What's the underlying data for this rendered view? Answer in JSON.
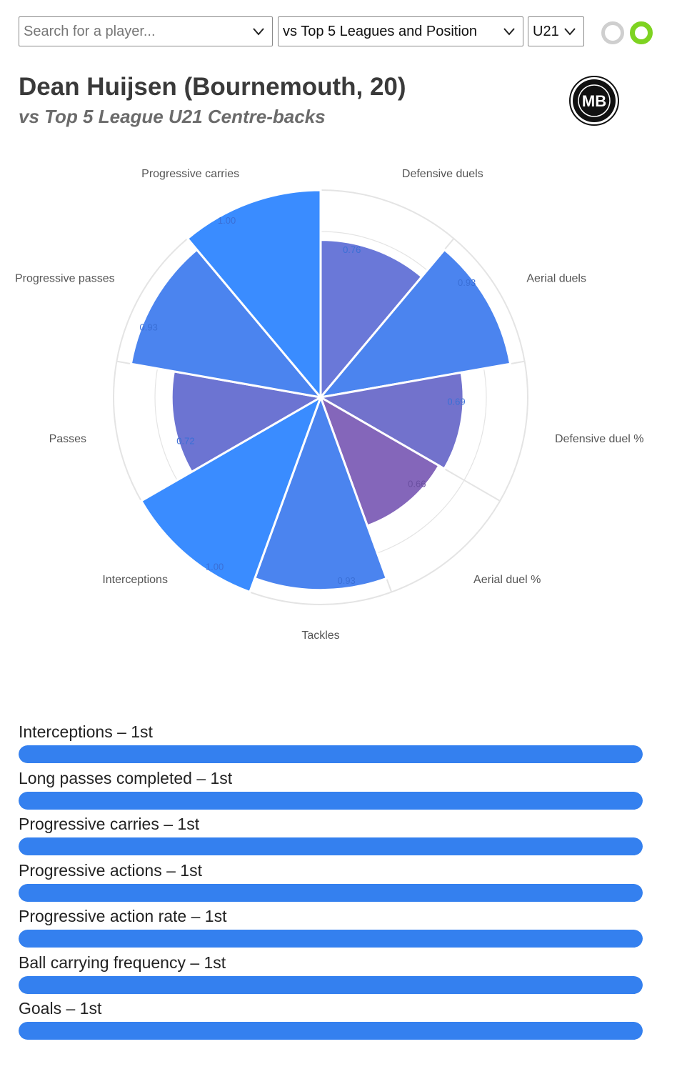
{
  "controls": {
    "search_placeholder": "Search for a player...",
    "comparison_value": "vs Top 5 Leagues and Position",
    "age_value": "U21"
  },
  "header": {
    "title": "Dean Huijsen (Bournemouth, 20)",
    "subtitle": "vs Top 5 League U21 Centre-backs",
    "logo_text": "MB"
  },
  "chart_data": {
    "type": "polar-area",
    "title": "",
    "rlim": [
      0,
      1
    ],
    "grid": true,
    "categories": [
      "Defensive duels",
      "Aerial duels",
      "Defensive duel %",
      "Aerial duel %",
      "Tackles",
      "Interceptions",
      "Passes",
      "Progressive passes",
      "Progressive carries"
    ],
    "values": [
      0.76,
      0.93,
      0.69,
      0.66,
      0.93,
      1.0,
      0.72,
      0.93,
      1.0
    ],
    "value_labels": [
      "0.76",
      "0.93",
      "0.69",
      "0.66",
      "0.93",
      "1.00",
      "0.72",
      "0.93",
      "1.00"
    ],
    "colors": [
      "#6a78d8",
      "#4b84ef",
      "#7272cc",
      "#8466ba",
      "#4b84ef",
      "#3a8cff",
      "#6c74d2",
      "#4b84ef",
      "#3a8cff"
    ]
  },
  "rankings": [
    {
      "label": "Interceptions – 1st",
      "value": 1.0
    },
    {
      "label": "Long passes completed – 1st",
      "value": 1.0
    },
    {
      "label": "Progressive carries – 1st",
      "value": 1.0
    },
    {
      "label": "Progressive actions – 1st",
      "value": 1.0
    },
    {
      "label": "Progressive action rate – 1st",
      "value": 1.0
    },
    {
      "label": "Ball carrying frequency – 1st",
      "value": 1.0
    },
    {
      "label": "Goals – 1st",
      "value": 1.0
    }
  ]
}
